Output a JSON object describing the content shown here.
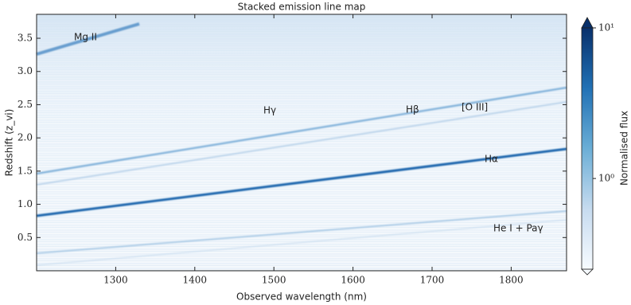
{
  "chart_data": {
    "type": "heatmap",
    "title": "Stacked emission line map",
    "x_label": "Observed wavelength (nm)",
    "y_label": "Redshift (z_vi)",
    "xlim": [
      1200,
      1870
    ],
    "xticks": [
      1300,
      1400,
      1500,
      1600,
      1700,
      1800
    ],
    "ylim": [
      0,
      3.86
    ],
    "yticks": [
      0.5,
      {
        "value": 1,
        "label": "1.0"
      },
      1.5,
      {
        "value": 2,
        "label": "2.0"
      },
      2.5,
      {
        "value": 3,
        "label": "3.0"
      },
      3.5
    ],
    "annotations": [
      "Mg II",
      "Hγ",
      "Hβ",
      "[O III]",
      "Hα",
      "He I + Paγ"
    ],
    "colorbar": {
      "label": "Normalised flux",
      "log": true,
      "lim": [
        0.25,
        10
      ],
      "ticks": [
        {
          "value": 1,
          "label": "10⁰"
        },
        {
          "value": 10,
          "label": "10¹"
        }
      ],
      "colors": [
        "#f7fbff",
        "#c6dbef",
        "#6baed6",
        "#2171b5",
        "#08306b"
      ]
    }
  }
}
